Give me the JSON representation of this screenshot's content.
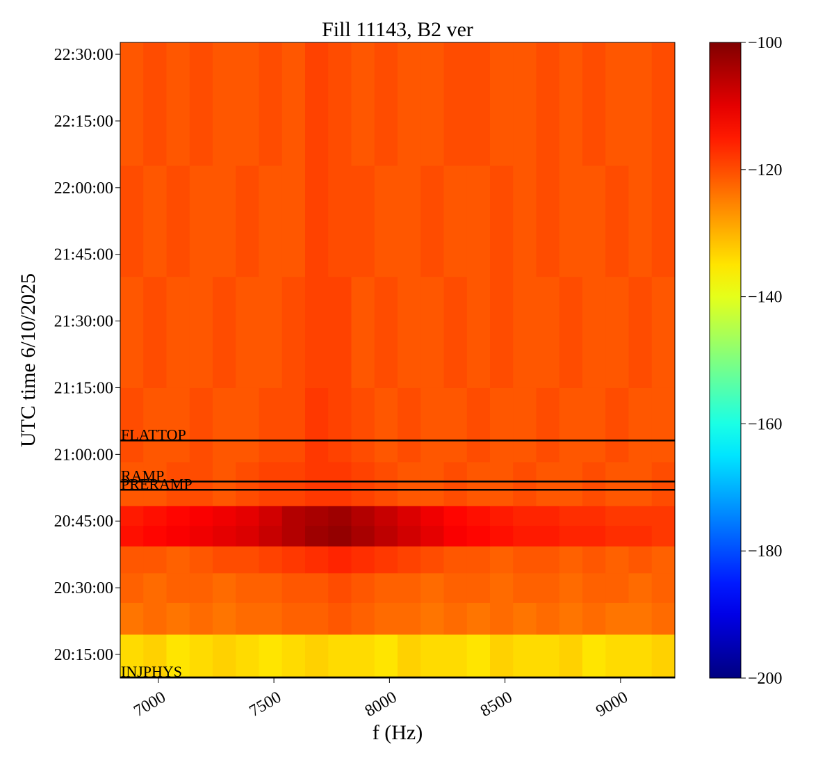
{
  "chart_data": {
    "type": "spectrogram",
    "title": "Fill 11143, B2 ver",
    "xlabel": "f (Hz)",
    "ylabel": "UTC time 6/10/2025",
    "colormap": "jet",
    "xlim": [
      6835,
      9235
    ],
    "xticks": [
      7000,
      7500,
      8000,
      8500,
      9000
    ],
    "ylim": [
      72581,
      81160
    ],
    "yticks": [
      {
        "value": 72900,
        "label": "20:15:00"
      },
      {
        "value": 73800,
        "label": "20:30:00"
      },
      {
        "value": 74700,
        "label": "20:45:00"
      },
      {
        "value": 75600,
        "label": "21:00:00"
      },
      {
        "value": 76500,
        "label": "21:15:00"
      },
      {
        "value": 77400,
        "label": "21:30:00"
      },
      {
        "value": 78300,
        "label": "21:45:00"
      },
      {
        "value": 79200,
        "label": "22:00:00"
      },
      {
        "value": 80100,
        "label": "22:15:00"
      },
      {
        "value": 81000,
        "label": "22:30:00"
      }
    ],
    "colorbar": {
      "lim": [
        -200,
        -100
      ],
      "ticks": [
        {
          "value": -200,
          "label": "−200"
        },
        {
          "value": -180,
          "label": "−180"
        },
        {
          "value": -160,
          "label": "−160"
        },
        {
          "value": -140,
          "label": "−140"
        },
        {
          "value": -120,
          "label": "−120"
        },
        {
          "value": -100,
          "label": "−100"
        }
      ]
    },
    "events": [
      {
        "label": "FLATTOP",
        "value": 75788
      },
      {
        "label": "RAMP",
        "value": 75234
      },
      {
        "label": "PRERAMP",
        "value": 75122
      },
      {
        "label": "INJPHYS",
        "value": 72590
      }
    ],
    "x_edges": [
      6835,
      6935,
      7035,
      7135,
      7235,
      7335,
      7435,
      7535,
      7635,
      7735,
      7835,
      7935,
      8035,
      8135,
      8235,
      8335,
      8435,
      8535,
      8635,
      8735,
      8835,
      8935,
      9035,
      9135,
      9235
    ],
    "y_edges": [
      72581,
      73172,
      73600,
      74000,
      74363,
      74640,
      74906,
      75500,
      76500,
      78000,
      79500,
      81160
    ],
    "values": [
      [
        -134,
        -133,
        -135,
        -134,
        -133,
        -134,
        -135,
        -134,
        -133,
        -134,
        -134,
        -135,
        -133,
        -134,
        -134,
        -135,
        -133,
        -134,
        -134,
        -133,
        -135,
        -134,
        -134,
        -133
      ],
      [
        -124,
        -123,
        -124,
        -123,
        -124,
        -123,
        -123,
        -122,
        -122,
        -121,
        -122,
        -123,
        -123,
        -124,
        -123,
        -124,
        -123,
        -124,
        -123,
        -124,
        -123,
        -124,
        -124,
        -123
      ],
      [
        -122,
        -123,
        -122,
        -122,
        -123,
        -122,
        -122,
        -121,
        -121,
        -120,
        -121,
        -122,
        -122,
        -123,
        -122,
        -122,
        -123,
        -122,
        -122,
        -123,
        -122,
        -122,
        -123,
        -122
      ],
      [
        -121,
        -121,
        -122,
        -121,
        -120,
        -120,
        -119,
        -118,
        -117,
        -116,
        -117,
        -118,
        -119,
        -120,
        -121,
        -121,
        -122,
        -121,
        -121,
        -122,
        -121,
        -122,
        -121,
        -122
      ],
      [
        -114,
        -113,
        -112,
        -111,
        -110,
        -109,
        -107,
        -105,
        -103,
        -102,
        -104,
        -106,
        -108,
        -110,
        -112,
        -113,
        -114,
        -115,
        -115,
        -116,
        -116,
        -117,
        -117,
        -118
      ],
      [
        -115,
        -114,
        -113,
        -112,
        -111,
        -110,
        -108,
        -105,
        -104,
        -103,
        -105,
        -107,
        -109,
        -111,
        -113,
        -114,
        -115,
        -116,
        -116,
        -117,
        -117,
        -118,
        -118,
        -118
      ],
      [
        -121,
        -121,
        -120,
        -120,
        -121,
        -120,
        -119,
        -119,
        -118,
        -118,
        -119,
        -120,
        -121,
        -121,
        -120,
        -121,
        -121,
        -120,
        -121,
        -121,
        -120,
        -121,
        -121,
        -120
      ],
      [
        -120,
        -121,
        -121,
        -120,
        -121,
        -121,
        -120,
        -120,
        -118,
        -119,
        -120,
        -121,
        -120,
        -121,
        -121,
        -120,
        -121,
        -121,
        -120,
        -121,
        -121,
        -120,
        -121,
        -121
      ],
      [
        -121,
        -120,
        -121,
        -121,
        -120,
        -121,
        -121,
        -120,
        -119,
        -119,
        -121,
        -120,
        -121,
        -121,
        -120,
        -121,
        -120,
        -121,
        -121,
        -120,
        -121,
        -121,
        -120,
        -121
      ],
      [
        -120,
        -121,
        -120,
        -121,
        -121,
        -120,
        -121,
        -121,
        -119,
        -120,
        -120,
        -121,
        -121,
        -120,
        -121,
        -121,
        -120,
        -121,
        -120,
        -121,
        -121,
        -120,
        -121,
        -120
      ],
      [
        -121,
        -120,
        -121,
        -120,
        -121,
        -121,
        -120,
        -121,
        -119,
        -120,
        -121,
        -120,
        -121,
        -121,
        -120,
        -120,
        -121,
        -121,
        -120,
        -121,
        -120,
        -121,
        -121,
        -120
      ]
    ]
  }
}
